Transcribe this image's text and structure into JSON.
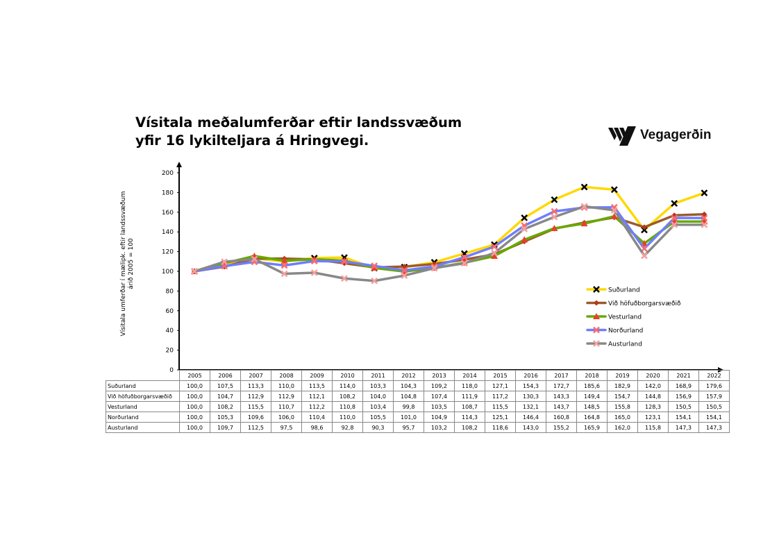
{
  "chart_data": {
    "type": "line",
    "title": "Vísitala meðalumferðar eftir landssvæðum\nyfir 16 lykilteljara á Hringvegi.",
    "title_lines": [
      "Vísitala meðalumferðar eftir landssvæðum",
      "yfir 16 lykilteljara á Hringvegi."
    ],
    "ylabel_lines": [
      "Vísitala umferðar í mælipk. eftir landssvæðum",
      "árið 2005 = 100"
    ],
    "ylim": [
      0,
      200
    ],
    "yticks": [
      "0",
      "20",
      "40",
      "60",
      "80",
      "100",
      "120",
      "140",
      "160",
      "180",
      "200"
    ],
    "categories": [
      "2005",
      "2006",
      "2007",
      "2008",
      "2009",
      "2010",
      "2011",
      "2012",
      "2013",
      "2014",
      "2015",
      "2016",
      "2017",
      "2018",
      "2019",
      "2020",
      "2021",
      "2022"
    ],
    "legend_position": "right",
    "grid": false,
    "series": [
      {
        "name": "Suðurland",
        "color": "#ffd800",
        "marker": "x",
        "marker_color": "#000000",
        "values": [
          100.0,
          107.5,
          113.3,
          110.0,
          113.5,
          114.0,
          103.3,
          104.3,
          109.2,
          118.0,
          127.1,
          154.3,
          172.7,
          185.6,
          182.9,
          142.0,
          168.9,
          179.6
        ]
      },
      {
        "name": "Við höfuðborgarsvæðið",
        "color": "#9c5a2b",
        "marker": "diamond",
        "marker_color": "#b03a1a",
        "values": [
          100.0,
          104.7,
          112.9,
          112.9,
          112.1,
          108.2,
          104.0,
          104.8,
          107.4,
          111.9,
          117.2,
          130.3,
          143.3,
          149.4,
          154.7,
          144.8,
          156.9,
          157.9
        ]
      },
      {
        "name": "Vesturland",
        "color": "#66aa00",
        "marker": "triangle",
        "marker_color": "#e8402a",
        "values": [
          100.0,
          108.2,
          115.5,
          110.7,
          112.2,
          110.8,
          103.4,
          99.8,
          103.5,
          108.7,
          115.5,
          132.1,
          143.7,
          148.5,
          155.8,
          128.3,
          150.5,
          150.5
        ]
      },
      {
        "name": "Norðurland",
        "color": "#6f7dff",
        "marker": "x",
        "marker_color": "#ff6a6a",
        "values": [
          100.0,
          105.3,
          109.6,
          106.0,
          110.4,
          110.0,
          105.5,
          101.0,
          104.9,
          114.3,
          125.1,
          146.4,
          160.8,
          164.8,
          165.0,
          123.1,
          154.1,
          154.1
        ]
      },
      {
        "name": "Austurland",
        "color": "#888888",
        "marker": "x",
        "marker_color": "#f4a0a0",
        "values": [
          100.0,
          109.7,
          112.5,
          97.5,
          98.6,
          92.8,
          90.3,
          95.7,
          103.2,
          108.2,
          118.6,
          143.0,
          155.2,
          165.9,
          162.0,
          115.8,
          147.3,
          147.3
        ]
      }
    ]
  },
  "table": {
    "rows": [
      {
        "label": "Suðurland",
        "cells": [
          "100,0",
          "107,5",
          "113,3",
          "110,0",
          "113,5",
          "114,0",
          "103,3",
          "104,3",
          "109,2",
          "118,0",
          "127,1",
          "154,3",
          "172,7",
          "185,6",
          "182,9",
          "142,0",
          "168,9",
          "179,6"
        ]
      },
      {
        "label": "Við höfuðborgarsvæðið",
        "cells": [
          "100,0",
          "104,7",
          "112,9",
          "112,9",
          "112,1",
          "108,2",
          "104,0",
          "104,8",
          "107,4",
          "111,9",
          "117,2",
          "130,3",
          "143,3",
          "149,4",
          "154,7",
          "144,8",
          "156,9",
          "157,9"
        ]
      },
      {
        "label": "Vesturland",
        "cells": [
          "100,0",
          "108,2",
          "115,5",
          "110,7",
          "112,2",
          "110,8",
          "103,4",
          "99,8",
          "103,5",
          "108,7",
          "115,5",
          "132,1",
          "143,7",
          "148,5",
          "155,8",
          "128,3",
          "150,5",
          "150,5"
        ]
      },
      {
        "label": "Norðurland",
        "cells": [
          "100,0",
          "105,3",
          "109,6",
          "106,0",
          "110,4",
          "110,0",
          "105,5",
          "101,0",
          "104,9",
          "114,3",
          "125,1",
          "146,4",
          "160,8",
          "164,8",
          "165,0",
          "123,1",
          "154,1",
          "154,1"
        ]
      },
      {
        "label": "Austurland",
        "cells": [
          "100,0",
          "109,7",
          "112,5",
          "97,5",
          "98,6",
          "92,8",
          "90,3",
          "95,7",
          "103,2",
          "108,2",
          "118,6",
          "143,0",
          "155,2",
          "165,9",
          "162,0",
          "115,8",
          "147,3",
          "147,3"
        ]
      }
    ]
  },
  "logo": {
    "text": "Vegagerðin"
  }
}
